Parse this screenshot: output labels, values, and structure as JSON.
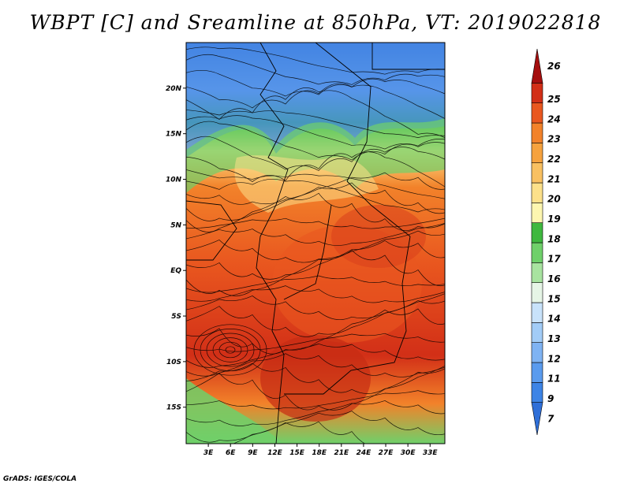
{
  "title": "WBPT [C] and Sreamline at 850hPa, VT: 2019022818",
  "credit": "GrADS: IGES/COLA",
  "map": {
    "lon_range": [
      0,
      35
    ],
    "lat_range": [
      -19,
      25
    ],
    "lon_ticks": [
      3,
      6,
      9,
      12,
      15,
      18,
      21,
      24,
      27,
      30,
      33
    ],
    "lon_tick_labels": [
      "3E",
      "6E",
      "9E",
      "12E",
      "15E",
      "18E",
      "21E",
      "24E",
      "27E",
      "30E",
      "33E"
    ],
    "lat_ticks": [
      20,
      15,
      10,
      5,
      0,
      -5,
      -10,
      -15
    ],
    "lat_tick_labels": [
      "20N",
      "15N",
      "10N",
      "5N",
      "EQ",
      "5S",
      "10S",
      "15S"
    ]
  },
  "colorbar": {
    "labels": [
      "7",
      "9",
      "11",
      "12",
      "13",
      "14",
      "15",
      "16",
      "17",
      "18",
      "19",
      "20",
      "21",
      "22",
      "23",
      "24",
      "25",
      "26"
    ],
    "colors": [
      "#2f6fd8",
      "#3d84e6",
      "#5a9bee",
      "#7fb3f3",
      "#a2ccf7",
      "#c8e2fa",
      "#e6f5e6",
      "#a8e3a0",
      "#6fd06a",
      "#3fb83f",
      "#fdf6b0",
      "#fce08a",
      "#f9c061",
      "#f6a23e",
      "#f2822a",
      "#e9571f",
      "#d22f17",
      "#a50f0f"
    ]
  }
}
